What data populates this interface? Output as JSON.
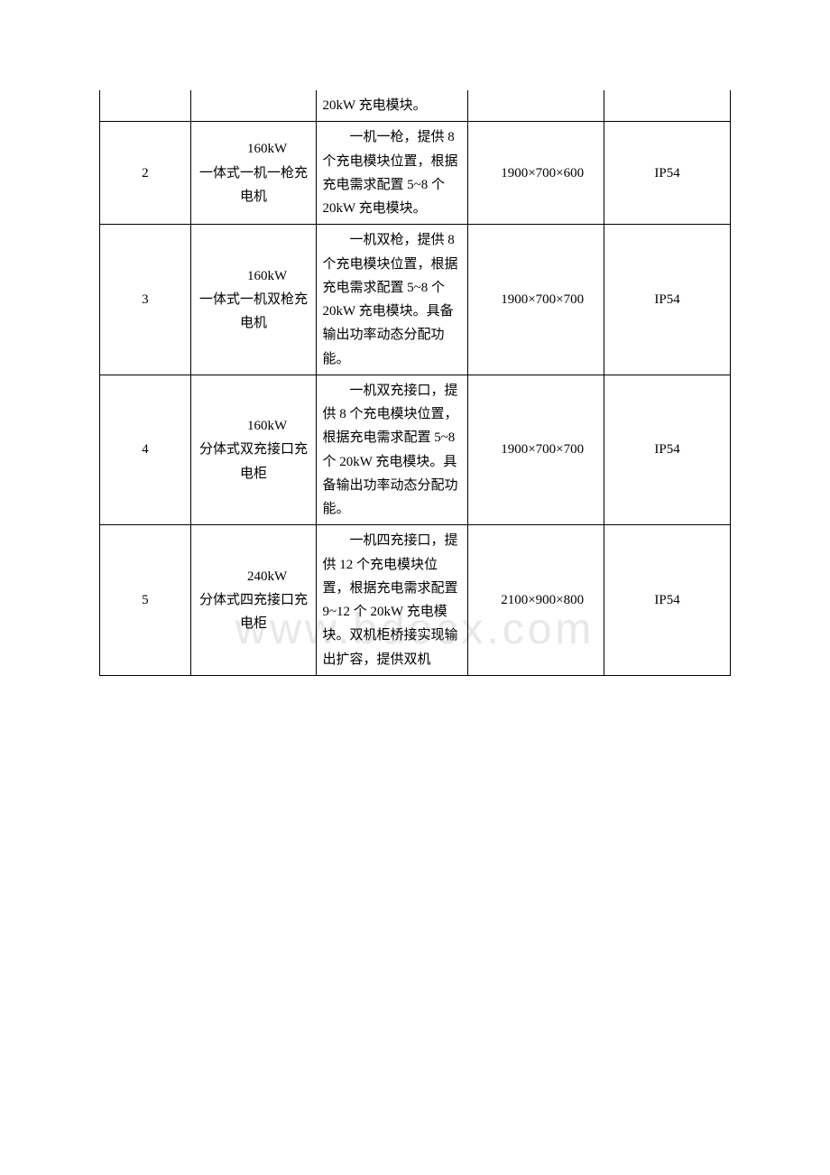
{
  "watermark": "www.bdocx.com",
  "table": {
    "columns": {
      "col1_width": 90,
      "col2_width": 125,
      "col3_width": 150,
      "col4_width": 135,
      "col5_width": 125
    },
    "border_color": "#000000",
    "font_size": 15,
    "line_height": 1.75,
    "text_color": "#000000",
    "background_color": "#ffffff",
    "watermark_color": "#e8e8e8",
    "watermark_fontsize": 48,
    "rows": [
      {
        "index": "",
        "name": "",
        "desc": "20kW 充电模块。",
        "dim": "",
        "ip": "",
        "continuation": true
      },
      {
        "index": "2",
        "name": "160kW\n一体式一机一枪充电机",
        "desc": "一机一枪，提供 8 个充电模块位置，根据充电需求配置 5~8 个 20kW 充电模块。",
        "dim": "1900×700×600",
        "ip": "IP54",
        "continuation": false
      },
      {
        "index": "3",
        "name": "160kW\n一体式一机双枪充电机",
        "desc": "一机双枪，提供 8 个充电模块位置，根据充电需求配置 5~8 个 20kW 充电模块。具备输出功率动态分配功能。",
        "dim": "1900×700×700",
        "ip": "IP54",
        "continuation": false
      },
      {
        "index": "4",
        "name": "160kW\n分体式双充接口充电柜",
        "desc": "一机双充接口，提供 8 个充电模块位置，根据充电需求配置 5~8 个 20kW 充电模块。具备输出功率动态分配功能。",
        "dim": "1900×700×700",
        "ip": "IP54",
        "continuation": false
      },
      {
        "index": "5",
        "name": "240kW\n分体式四充接口充电柜",
        "desc": "一机四充接口，提供 12 个充电模块位置，根据充电需求配置 9~12 个 20kW 充电模块。双机柜桥接实现输出扩容，提供双机",
        "dim": "2100×900×800",
        "ip": "IP54",
        "continuation": false
      }
    ]
  }
}
